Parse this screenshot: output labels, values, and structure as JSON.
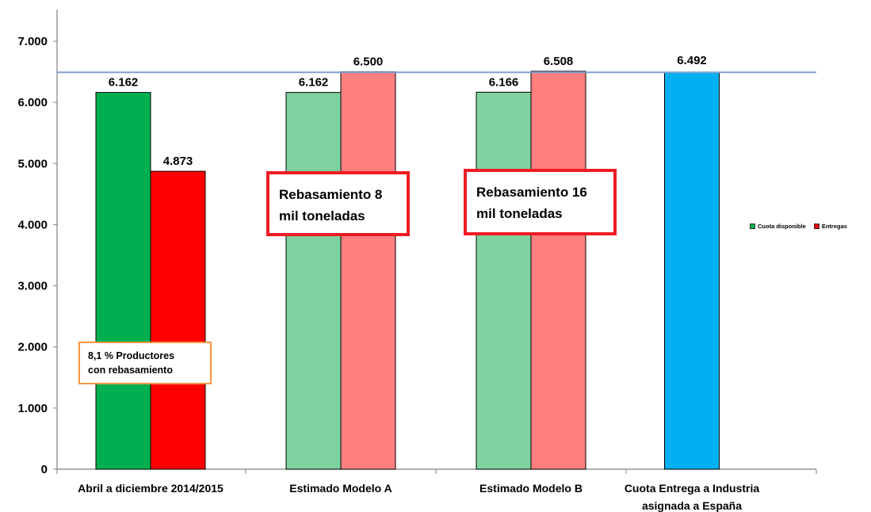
{
  "chart_data": {
    "type": "bar",
    "title": "",
    "xlabel": "",
    "ylabel": "",
    "ylim": [
      0,
      7000
    ],
    "y_ticks": [
      "0",
      "1.000",
      "2.000",
      "3.000",
      "4.000",
      "5.000",
      "6.000",
      "7.000"
    ],
    "y_tick_values": [
      0,
      1000,
      2000,
      3000,
      4000,
      5000,
      6000,
      7000
    ],
    "grid": false,
    "legend_position": "right",
    "categories": [
      [
        "Abril a diciembre 2014/2015"
      ],
      [
        "Estimado Modelo A"
      ],
      [
        "Estimado Modelo B"
      ],
      [
        "Cuota Entrega a Industria",
        "asignada a España"
      ]
    ],
    "series": [
      {
        "name": "Cuota disponible",
        "values": [
          6162,
          6162,
          6166,
          null
        ],
        "labels": [
          "6.162",
          "6.162",
          "6.166",
          ""
        ],
        "colors": [
          "#00b050",
          "#7fd3a0",
          "#7fd3a0",
          ""
        ]
      },
      {
        "name": "Entregas",
        "values": [
          4873,
          6500,
          6508,
          null
        ],
        "labels": [
          "4.873",
          "6.500",
          "6.508",
          ""
        ],
        "colors": [
          "#ff0000",
          "#ff7f7f",
          "#ff7f7f",
          ""
        ]
      }
    ],
    "extra_bar": {
      "category_index": 3,
      "value": 6492,
      "label": "6.492",
      "color": "#00b0f0"
    },
    "reference_line": {
      "value": 6492,
      "color": "#7f9fd0"
    },
    "annotations": [
      {
        "lines": [
          "Rebasamiento 8",
          "mil toneladas"
        ],
        "style": "red"
      },
      {
        "lines": [
          "Rebasamiento 16",
          "mil toneladas"
        ],
        "style": "red"
      },
      {
        "lines": [
          "8,1 % Productores",
          "con rebasamiento"
        ],
        "style": "orange"
      }
    ],
    "legend": [
      {
        "label": "Cuota disponible",
        "color": "#00b050"
      },
      {
        "label": "Entregas",
        "color": "#ff0000"
      }
    ]
  }
}
